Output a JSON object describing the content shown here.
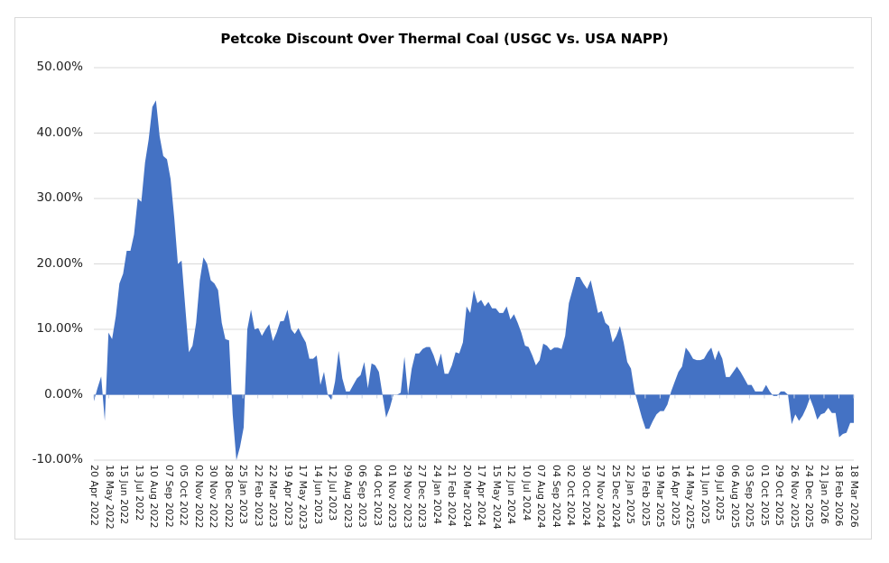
{
  "chart_data": {
    "type": "area",
    "title": "Petcoke Discount Over Thermal Coal (USGC Vs. USA NAPP)",
    "xlabel": "",
    "ylabel": "",
    "ylim": [
      -10,
      50
    ],
    "y_ticks": [
      "-10.00%",
      "0.00%",
      "10.00%",
      "20.00%",
      "30.00%",
      "40.00%",
      "50.00%"
    ],
    "y_tick_values": [
      -10,
      0,
      10,
      20,
      30,
      40,
      50
    ],
    "grid": true,
    "legend": "none",
    "color": "#4472C4",
    "x_tick_labels": [
      "20 Apr 2022",
      "18 May 2022",
      "15 Jun 2022",
      "13 Jul 2022",
      "10 Aug 2022",
      "07 Sep 2022",
      "05 Oct 2022",
      "02 Nov 2022",
      "30 Nov 2022",
      "28 Dec 2022",
      "25 Jan 2023",
      "22 Feb 2023",
      "22 Mar 2023",
      "19 Apr 2023",
      "17 May 2023",
      "14 Jun 2023",
      "12 Jul 2023",
      "09 Aug 2023",
      "06 Sep 2023",
      "04 Oct 2023",
      "01 Nov 2023",
      "29 Nov 2023",
      "27 Dec 2023",
      "24 Jan 2024",
      "21 Feb 2024",
      "20 Mar 2024",
      "17 Apr 2024",
      "15 May 2024",
      "12 Jun 2024",
      "10 Jul 2024",
      "07 Aug 2024",
      "04 Sep 2024",
      "02 Oct 2024",
      "30 Oct 2024",
      "27 Nov 2024",
      "25 Dec 2024",
      "22 Jan 2025",
      "19 Feb 2025",
      "19 Mar 2025",
      "16 Apr 2025",
      "14 May 2025",
      "11 Jun 2025",
      "09 Jul 2025",
      "06 Aug 2025",
      "03 Sep 2025",
      "01 Oct 2025",
      "29 Oct 2025",
      "26 Nov 2025",
      "24 Dec 2025",
      "21 Jan 2026",
      "18 Feb 2026",
      "18 Mar 2026"
    ],
    "series": [
      {
        "name": "Petcoke Discount",
        "values": [
          -1.0,
          1.0,
          2.8,
          -4.0,
          9.5,
          8.5,
          12.0,
          17.0,
          18.5,
          22.0,
          22.0,
          24.5,
          30.0,
          29.5,
          35.5,
          39.0,
          44.0,
          45.0,
          39.5,
          36.5,
          36.0,
          33.0,
          27.0,
          20.0,
          20.5,
          13.5,
          6.5,
          7.5,
          11.0,
          17.5,
          21.0,
          20.0,
          17.5,
          17.0,
          16.0,
          11.0,
          8.5,
          8.3,
          -3.0,
          -10.0,
          -8.0,
          -5.0,
          10.0,
          13.0,
          10.0,
          10.2,
          9.0,
          10.0,
          10.8,
          8.2,
          9.5,
          11.2,
          11.3,
          13.0,
          10.0,
          9.3,
          10.2,
          9.0,
          8.0,
          5.5,
          5.5,
          6.0,
          1.5,
          3.5,
          0.0,
          -0.8,
          2.0,
          6.7,
          2.5,
          0.5,
          0.5,
          1.5,
          2.5,
          3.0,
          5.0,
          1.0,
          4.8,
          4.5,
          3.5,
          0.0,
          -3.5,
          -2.0,
          0.0,
          0.0,
          0.3,
          5.8,
          0.0,
          4.0,
          6.3,
          6.3,
          7.0,
          7.3,
          7.3,
          6.0,
          4.3,
          6.3,
          3.2,
          3.2,
          4.5,
          6.5,
          6.3,
          8.0,
          13.5,
          12.5,
          16.0,
          14.0,
          14.5,
          13.5,
          14.2,
          13.2,
          13.2,
          12.5,
          12.5,
          13.5,
          11.5,
          12.3,
          11.0,
          9.5,
          7.5,
          7.3,
          6.0,
          4.5,
          5.3,
          7.8,
          7.5,
          6.8,
          7.2,
          7.2,
          7.0,
          9.0,
          14.0,
          16.0,
          18.0,
          18.0,
          17.0,
          16.2,
          17.5,
          15.0,
          12.5,
          12.8,
          11.0,
          10.5,
          8.0,
          9.0,
          10.5,
          8.0,
          5.0,
          4.0,
          0.5,
          -1.5,
          -3.5,
          -5.2,
          -5.2,
          -4.0,
          -3.0,
          -2.5,
          -2.5,
          -1.5,
          0.5,
          2.0,
          3.5,
          4.3,
          7.2,
          6.5,
          5.5,
          5.3,
          5.3,
          5.5,
          6.5,
          7.2,
          5.3,
          6.8,
          5.5,
          2.7,
          2.7,
          3.5,
          4.3,
          3.5,
          2.5,
          1.5,
          1.5,
          0.5,
          0.5,
          0.5,
          1.5,
          0.5,
          -0.2,
          -0.2,
          0.5,
          0.5,
          0.0,
          -4.5,
          -3.0,
          -4.0,
          -3.2,
          -2.0,
          -0.5,
          -2.0,
          -3.8,
          -3.0,
          -2.8,
          -2.0,
          -2.8,
          -2.8,
          -6.5,
          -6.0,
          -5.8,
          -4.3,
          -4.3
        ]
      }
    ]
  }
}
